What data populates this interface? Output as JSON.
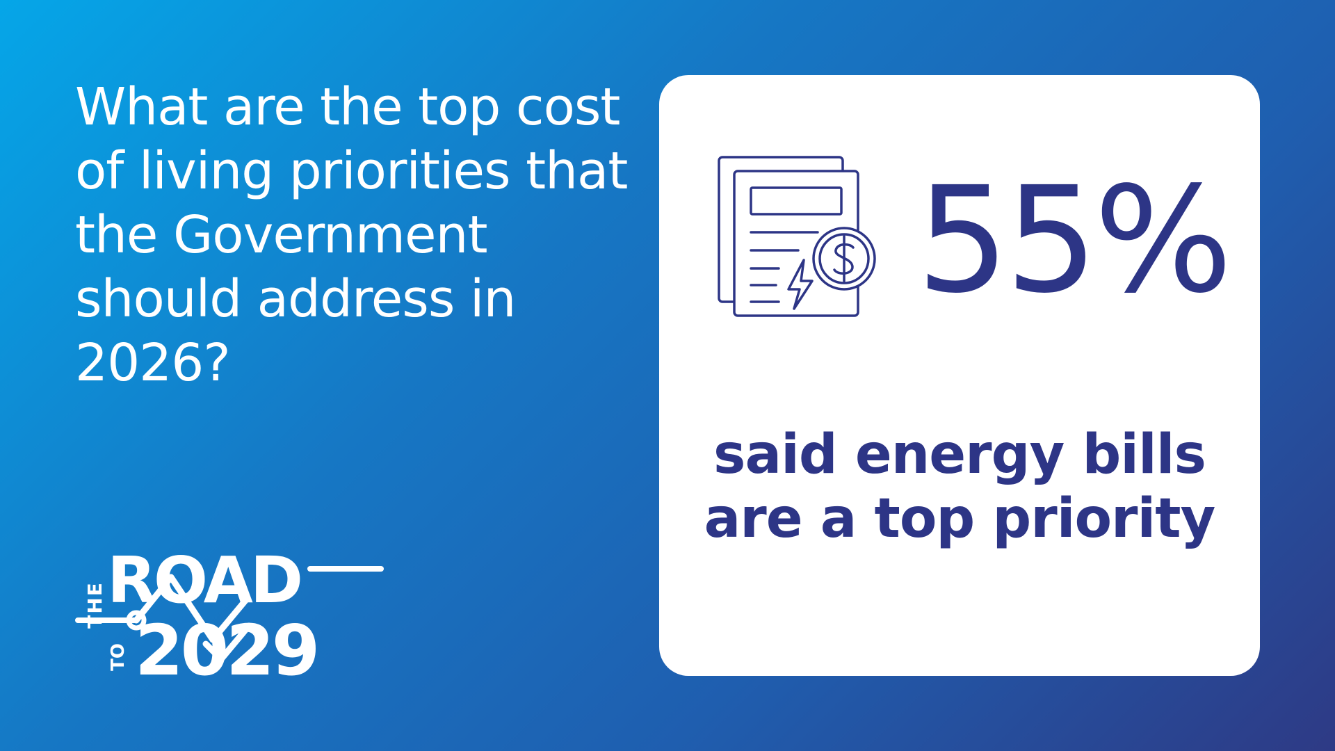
{
  "question": "What are the top cost of living priorities that the Government should address in 2026?",
  "stat": {
    "value": "55%",
    "caption": "said energy bills are a top priority",
    "icon": "energy-bill-icon"
  },
  "logo": {
    "the": "THE",
    "road": "ROAD",
    "to": "TO",
    "year": "2029"
  },
  "colors": {
    "background_start": "#05a6e8",
    "background_end": "#2e3a85",
    "card": "#ffffff",
    "accent": "#2d3586",
    "text_light": "#ffffff"
  }
}
